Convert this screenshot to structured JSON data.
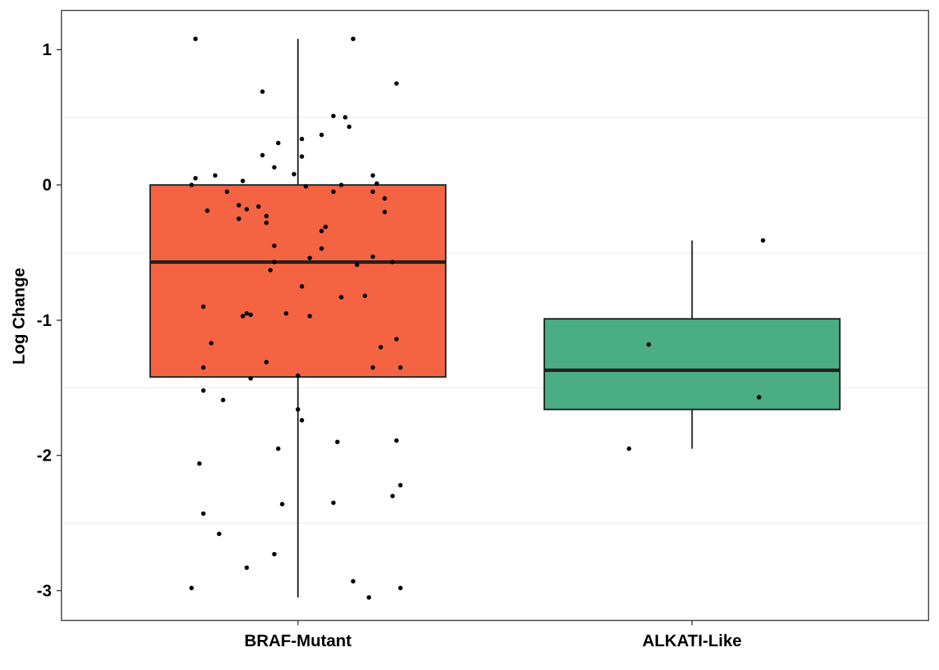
{
  "chart_data": {
    "type": "boxplot",
    "title": "",
    "xlabel": "",
    "ylabel": "Log Change",
    "ylim": [
      -3.22,
      1.29
    ],
    "yticks": [
      1,
      0,
      -1,
      -2,
      -3
    ],
    "ytick_labels": [
      "1",
      "0",
      "-1",
      "-2",
      "-3"
    ],
    "grid": "horizontal minor gridlines",
    "categories": [
      "BRAF-Mutant",
      "ALKATI-Like"
    ],
    "boxes": [
      {
        "category": "BRAF-Mutant",
        "color": "#F46342",
        "whisker_low": -3.05,
        "q1": -1.42,
        "median": -0.57,
        "q3": 0.0,
        "whisker_high": 1.08,
        "points": [
          [
            -0.26,
            1.08
          ],
          [
            0.14,
            1.08
          ],
          [
            -0.09,
            0.69
          ],
          [
            0.25,
            0.75
          ],
          [
            0.09,
            0.51
          ],
          [
            0.12,
            0.5
          ],
          [
            0.01,
            0.34
          ],
          [
            0.06,
            0.37
          ],
          [
            -0.05,
            0.31
          ],
          [
            0.13,
            0.43
          ],
          [
            -0.09,
            0.22
          ],
          [
            0.01,
            0.21
          ],
          [
            -0.06,
            0.13
          ],
          [
            -0.01,
            0.08
          ],
          [
            0.19,
            0.07
          ],
          [
            -0.26,
            0.05
          ],
          [
            -0.21,
            0.07
          ],
          [
            -0.14,
            0.03
          ],
          [
            -0.27,
            0.0
          ],
          [
            0.02,
            -0.01
          ],
          [
            0.11,
            0.0
          ],
          [
            0.2,
            0.01
          ],
          [
            0.19,
            -0.05
          ],
          [
            0.09,
            -0.05
          ],
          [
            -0.18,
            -0.05
          ],
          [
            0.22,
            -0.1
          ],
          [
            -0.15,
            -0.15
          ],
          [
            -0.1,
            -0.16
          ],
          [
            -0.13,
            -0.18
          ],
          [
            -0.23,
            -0.19
          ],
          [
            -0.08,
            -0.23
          ],
          [
            -0.15,
            -0.25
          ],
          [
            -0.08,
            -0.28
          ],
          [
            0.22,
            -0.2
          ],
          [
            0.07,
            -0.31
          ],
          [
            0.06,
            -0.34
          ],
          [
            -0.06,
            -0.45
          ],
          [
            0.06,
            -0.47
          ],
          [
            0.03,
            -0.54
          ],
          [
            0.19,
            -0.53
          ],
          [
            -0.06,
            -0.57
          ],
          [
            0.24,
            -0.57
          ],
          [
            0.15,
            -0.59
          ],
          [
            -0.07,
            -0.63
          ],
          [
            0.01,
            -0.75
          ],
          [
            0.11,
            -0.83
          ],
          [
            0.17,
            -0.82
          ],
          [
            -0.24,
            -0.9
          ],
          [
            -0.13,
            -0.95
          ],
          [
            -0.12,
            -0.96
          ],
          [
            -0.14,
            -0.97
          ],
          [
            -0.03,
            -0.95
          ],
          [
            0.03,
            -0.97
          ],
          [
            -0.22,
            -1.17
          ],
          [
            0.25,
            -1.14
          ],
          [
            0.21,
            -1.2
          ],
          [
            -0.24,
            -1.35
          ],
          [
            -0.08,
            -1.31
          ],
          [
            -0.12,
            -1.43
          ],
          [
            0.19,
            -1.35
          ],
          [
            0.26,
            -1.35
          ],
          [
            0.0,
            -1.41
          ],
          [
            -0.24,
            -1.52
          ],
          [
            -0.19,
            -1.59
          ],
          [
            0.0,
            -1.66
          ],
          [
            0.01,
            -1.74
          ],
          [
            -0.05,
            -1.95
          ],
          [
            0.1,
            -1.9
          ],
          [
            0.25,
            -1.89
          ],
          [
            -0.25,
            -2.06
          ],
          [
            0.26,
            -2.22
          ],
          [
            0.24,
            -2.3
          ],
          [
            -0.24,
            -2.43
          ],
          [
            -0.04,
            -2.36
          ],
          [
            0.09,
            -2.35
          ],
          [
            -0.2,
            -2.58
          ],
          [
            -0.06,
            -2.73
          ],
          [
            -0.13,
            -2.83
          ],
          [
            0.14,
            -2.93
          ],
          [
            -0.27,
            -2.98
          ],
          [
            0.26,
            -2.98
          ],
          [
            0.18,
            -3.05
          ]
        ]
      },
      {
        "category": "ALKATI-Like",
        "color": "#4AAD84",
        "whisker_low": -1.95,
        "q1": -1.66,
        "median": -1.37,
        "q3": -0.99,
        "whisker_high": -0.41,
        "points": [
          [
            0.18,
            -0.41
          ],
          [
            -0.11,
            -1.18
          ],
          [
            0.17,
            -1.57
          ],
          [
            -0.16,
            -1.95
          ]
        ]
      }
    ]
  }
}
